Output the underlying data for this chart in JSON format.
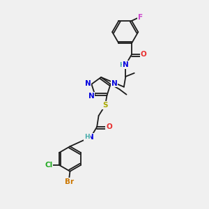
{
  "bg_color": "#f0f0f0",
  "bond_color": "#1a1a1a",
  "fig_size": [
    3.0,
    3.0
  ],
  "dpi": 100,
  "colors": {
    "F": "#cc44cc",
    "O": "#e83030",
    "N": "#0000dd",
    "H": "#44aaaa",
    "S": "#aaaa00",
    "Cl": "#22aa22",
    "Br": "#cc7700",
    "C": "#1a1a1a"
  },
  "lw": 1.3,
  "fs": 7.5
}
